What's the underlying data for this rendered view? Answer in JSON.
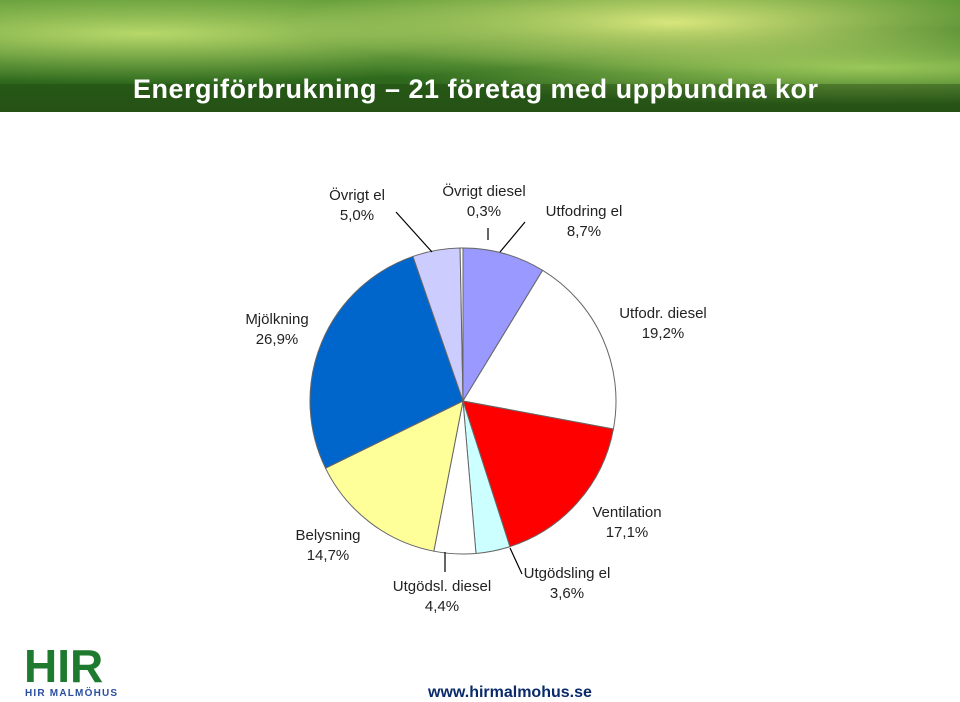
{
  "header": {
    "title": "Energiförbrukning – 21 företag med uppbundna kor"
  },
  "chart_data": {
    "type": "pie",
    "title": "",
    "slices": [
      {
        "label": "Utfodring el",
        "value_label": "8,7%",
        "value": 8.7,
        "color": "#9999ff"
      },
      {
        "label": "Utfodr. diesel",
        "value_label": "19,2%",
        "value": 19.2,
        "color": "#ffffff"
      },
      {
        "label": "Ventilation",
        "value_label": "17,1%",
        "value": 17.1,
        "color": "#ff0000"
      },
      {
        "label": "Utgödsling el",
        "value_label": "3,6%",
        "value": 3.6,
        "color": "#ccffff"
      },
      {
        "label": "Utgödsl. diesel",
        "value_label": "4,4%",
        "value": 4.4,
        "color": "#ffffff"
      },
      {
        "label": "Belysning",
        "value_label": "14,7%",
        "value": 14.7,
        "color": "#ffff99"
      },
      {
        "label": "Mjölkning",
        "value_label": "26,9%",
        "value": 26.9,
        "color": "#0066cc"
      },
      {
        "label": "Övrigt el",
        "value_label": "5,0%",
        "value": 5.0,
        "color": "#ccccff"
      },
      {
        "label": "Övrigt diesel",
        "value_label": "0,3%",
        "value": 0.3,
        "color": "#ffffff"
      }
    ]
  },
  "footer": {
    "logo_text": "HIR",
    "logo_subtext": "HIR MALMÖHUS",
    "url": "www.hirmalmohus.se",
    "logo_color": "#1e7a2e",
    "logo_accent": "#2a4fa0"
  }
}
